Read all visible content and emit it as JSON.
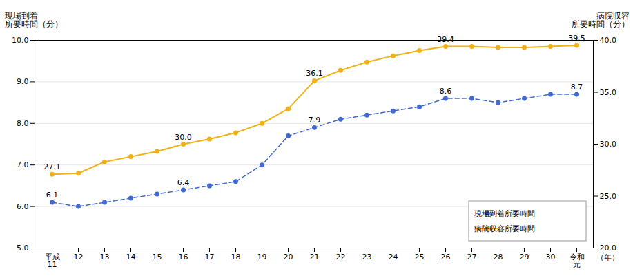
{
  "chart_data": {
    "type": "line",
    "categories": [
      "平成\n11",
      "12",
      "13",
      "14",
      "15",
      "16",
      "17",
      "18",
      "19",
      "20",
      "21",
      "22",
      "23",
      "24",
      "25",
      "26",
      "27",
      "28",
      "29",
      "30",
      "令和\n元"
    ],
    "series": [
      {
        "name": "現場到着所要時間",
        "values": [
          6.1,
          6.0,
          6.1,
          6.2,
          6.3,
          6.4,
          6.5,
          6.6,
          7.0,
          7.7,
          7.9,
          8.1,
          8.2,
          8.3,
          8.4,
          8.6,
          8.6,
          8.5,
          8.6,
          8.7,
          8.7
        ],
        "line_style": "dashed",
        "marker": "circle"
      },
      {
        "name": "病院収容所要時間",
        "values": [
          27.1,
          27.2,
          28.3,
          28.8,
          29.3,
          30.0,
          30.5,
          31.1,
          32.0,
          33.4,
          36.1,
          37.1,
          37.9,
          38.5,
          39.0,
          39.4,
          39.4,
          39.3,
          39.3,
          39.4,
          39.5
        ],
        "axis": "y2",
        "line_style": "solid",
        "marker": "circle"
      }
    ],
    "ylim": [
      5.0,
      10.0
    ],
    "yticks": [
      {
        "value": 5,
        "label": "5.0"
      },
      {
        "value": 6,
        "label": "6.0"
      },
      {
        "value": 7,
        "label": "7.0"
      },
      {
        "value": 8,
        "label": "8.0"
      },
      {
        "value": 9,
        "label": "9.0"
      },
      {
        "value": 10,
        "label": "10.0"
      }
    ],
    "y2lim": [
      20.0,
      40.0
    ],
    "y2ticks": [
      {
        "value": 20,
        "label": "20.0"
      },
      {
        "value": 25,
        "label": "25.0"
      },
      {
        "value": 30,
        "label": "30.0"
      },
      {
        "value": 35,
        "label": "35.0"
      },
      {
        "value": 40,
        "label": "40.0"
      }
    ],
    "ylabel": "現場到着\n所要時間（分）",
    "y2label": "病院収容\n所要時間（分）",
    "xlabel": "（年）",
    "grid": true,
    "legend": "lower right",
    "annotations": [
      {
        "series": "現場到着所要時間",
        "category": "平成\n11",
        "text": "6.1"
      },
      {
        "series": "現場到着所要時間",
        "category": "16",
        "text": "6.4"
      },
      {
        "series": "現場到着所要時間",
        "category": "21",
        "text": "7.9"
      },
      {
        "series": "現場到着所要時間",
        "category": "26",
        "text": "8.6"
      },
      {
        "series": "現場到着所要時間",
        "category": "令和\n元",
        "text": "8.7"
      },
      {
        "series": "病院収容所要時間",
        "category": "平成\n11",
        "text": "27.1"
      },
      {
        "series": "病院収容所要時間",
        "category": "16",
        "text": "30.0"
      },
      {
        "series": "病院収容所要時間",
        "category": "21",
        "text": "36.1"
      },
      {
        "series": "病院収容所要時間",
        "category": "26",
        "text": "39.4"
      },
      {
        "series": "病院収容所要時間",
        "category": "令和\n元",
        "text": "39.5"
      }
    ]
  }
}
